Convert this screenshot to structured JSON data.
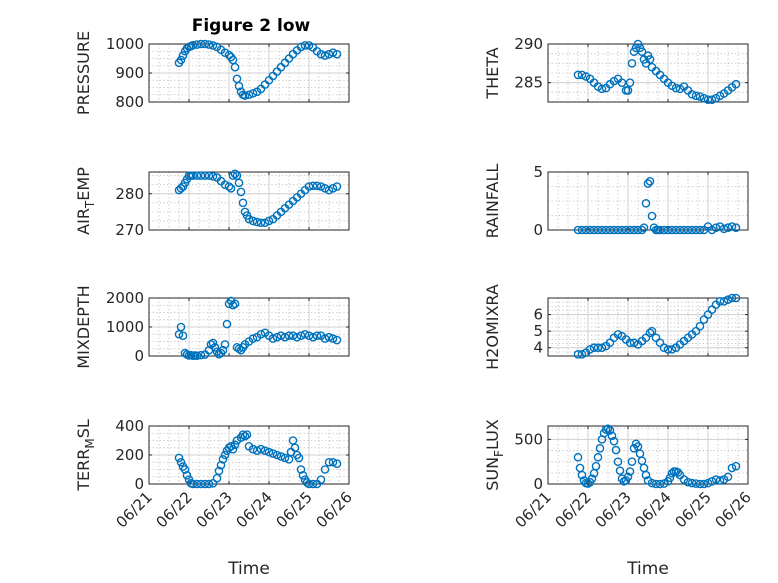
{
  "figure_title": "Figure 2 low",
  "chart_data": [
    {
      "type": "scatter",
      "ylabel": "PRESSURE",
      "ylabel_sub": "",
      "ylabel_tail": "",
      "xlim": [
        "06/21",
        "06/26"
      ],
      "ylim": [
        800,
        1000
      ],
      "yticks": [
        800,
        900,
        1000
      ],
      "grid": true,
      "show_xticks": false,
      "xlabel": "",
      "x": [
        21.75,
        21.8,
        21.85,
        21.9,
        21.95,
        22.0,
        22.05,
        22.1,
        22.2,
        22.3,
        22.4,
        22.5,
        22.6,
        22.7,
        22.8,
        22.9,
        23.0,
        23.05,
        23.1,
        23.15,
        23.2,
        23.25,
        23.3,
        23.35,
        23.4,
        23.5,
        23.6,
        23.7,
        23.8,
        23.9,
        24.0,
        24.1,
        24.2,
        24.3,
        24.4,
        24.5,
        24.6,
        24.7,
        24.8,
        24.9,
        25.0,
        25.1,
        25.2,
        25.3,
        25.4,
        25.5,
        25.6,
        25.7
      ],
      "y": [
        935,
        945,
        960,
        975,
        985,
        990,
        993,
        996,
        998,
        1000,
        1000,
        998,
        995,
        990,
        980,
        970,
        962,
        955,
        945,
        920,
        880,
        855,
        835,
        825,
        822,
        825,
        830,
        835,
        845,
        860,
        875,
        890,
        905,
        920,
        935,
        950,
        965,
        978,
        990,
        995,
        995,
        988,
        975,
        965,
        960,
        965,
        970,
        965
      ]
    },
    {
      "type": "scatter",
      "ylabel": "THETA",
      "ylabel_sub": "",
      "ylabel_tail": "",
      "xlim": [
        "06/21",
        "06/26"
      ],
      "ylim": [
        282.5,
        290
      ],
      "yticks": [
        285,
        290
      ],
      "grid": true,
      "show_xticks": false,
      "xlabel": "",
      "x": [
        21.75,
        21.85,
        21.95,
        22.05,
        22.15,
        22.25,
        22.35,
        22.45,
        22.55,
        22.65,
        22.75,
        22.85,
        22.95,
        23.0,
        23.05,
        23.1,
        23.15,
        23.2,
        23.25,
        23.3,
        23.35,
        23.4,
        23.45,
        23.5,
        23.55,
        23.6,
        23.7,
        23.8,
        23.9,
        24.0,
        24.1,
        24.2,
        24.3,
        24.4,
        24.5,
        24.6,
        24.7,
        24.8,
        24.9,
        25.0,
        25.1,
        25.2,
        25.3,
        25.4,
        25.5,
        25.6,
        25.7
      ],
      "y": [
        286,
        286,
        285.8,
        285.5,
        285,
        284.5,
        284.2,
        284.3,
        284.8,
        285.2,
        285.5,
        285,
        284,
        284,
        285,
        287.5,
        289,
        289.5,
        290,
        289.5,
        289,
        288,
        287.5,
        288.5,
        288,
        287,
        286.5,
        286,
        285.5,
        285,
        284.6,
        284.3,
        284.2,
        284.5,
        284,
        283.5,
        283.3,
        283.2,
        283,
        282.8,
        282.8,
        283,
        283.3,
        283.6,
        284,
        284.4,
        284.8
      ]
    },
    {
      "type": "scatter",
      "ylabel": "AIR",
      "ylabel_sub": "T",
      "ylabel_tail": "EMP",
      "xlim": [
        "06/21",
        "06/26"
      ],
      "ylim": [
        270,
        286
      ],
      "yticks": [
        270,
        280
      ],
      "grid": true,
      "show_xticks": false,
      "xlabel": "",
      "x": [
        21.75,
        21.8,
        21.85,
        21.9,
        21.95,
        22.0,
        22.05,
        22.1,
        22.2,
        22.3,
        22.4,
        22.5,
        22.6,
        22.7,
        22.8,
        22.9,
        23.0,
        23.05,
        23.1,
        23.15,
        23.2,
        23.25,
        23.3,
        23.35,
        23.4,
        23.45,
        23.5,
        23.6,
        23.7,
        23.8,
        23.9,
        24.0,
        24.1,
        24.2,
        24.3,
        24.4,
        24.5,
        24.6,
        24.7,
        24.8,
        24.9,
        25.0,
        25.1,
        25.2,
        25.3,
        25.4,
        25.5,
        25.6,
        25.7
      ],
      "y": [
        281,
        281.5,
        282,
        283,
        284,
        285,
        285,
        285,
        285,
        285,
        285,
        285,
        284.8,
        284.5,
        283.5,
        282.5,
        282,
        281.5,
        285,
        285.5,
        285,
        283,
        280.5,
        277.5,
        275,
        274,
        273,
        272.5,
        272.2,
        272,
        272,
        272.5,
        273,
        274,
        275,
        276,
        277,
        278,
        279,
        280,
        281,
        282,
        282.2,
        282.2,
        282,
        281.5,
        281,
        281.5,
        282
      ]
    },
    {
      "type": "scatter",
      "ylabel": "RAINFALL",
      "ylabel_sub": "",
      "ylabel_tail": "",
      "xlim": [
        "06/21",
        "06/26"
      ],
      "ylim": [
        0,
        5
      ],
      "yticks": [
        0,
        5
      ],
      "grid": true,
      "show_xticks": false,
      "xlabel": "",
      "x": [
        21.75,
        21.85,
        21.95,
        22.05,
        22.15,
        22.25,
        22.35,
        22.45,
        22.55,
        22.65,
        22.75,
        22.85,
        22.95,
        23.05,
        23.15,
        23.25,
        23.35,
        23.4,
        23.45,
        23.5,
        23.55,
        23.6,
        23.65,
        23.7,
        23.75,
        23.8,
        23.9,
        24.0,
        24.1,
        24.2,
        24.3,
        24.4,
        24.5,
        24.6,
        24.7,
        24.8,
        24.9,
        25.0,
        25.1,
        25.2,
        25.3,
        25.4,
        25.5,
        25.6,
        25.7
      ],
      "y": [
        0,
        0,
        0,
        0,
        0,
        0,
        0,
        0,
        0,
        0,
        0,
        0,
        0,
        0,
        0,
        0,
        0,
        0.2,
        2.3,
        4.0,
        4.2,
        1.2,
        0.2,
        0,
        0,
        0,
        0,
        0,
        0,
        0,
        0,
        0,
        0,
        0,
        0,
        0,
        0,
        0.3,
        0,
        0.2,
        0.3,
        0.1,
        0.2,
        0.3,
        0.2
      ]
    },
    {
      "type": "scatter",
      "ylabel": "MIXDEPTH",
      "ylabel_sub": "",
      "ylabel_tail": "",
      "xlim": [
        "06/21",
        "06/26"
      ],
      "ylim": [
        0,
        2000
      ],
      "yticks": [
        0,
        1000,
        2000
      ],
      "grid": true,
      "show_xticks": false,
      "xlabel": "",
      "x": [
        21.75,
        21.8,
        21.85,
        21.9,
        21.95,
        22.0,
        22.05,
        22.1,
        22.15,
        22.2,
        22.3,
        22.4,
        22.5,
        22.55,
        22.6,
        22.65,
        22.7,
        22.75,
        22.8,
        22.85,
        22.9,
        22.95,
        23.0,
        23.05,
        23.1,
        23.15,
        23.2,
        23.25,
        23.3,
        23.35,
        23.4,
        23.5,
        23.6,
        23.7,
        23.8,
        23.9,
        24.0,
        24.1,
        24.2,
        24.3,
        24.4,
        24.5,
        24.6,
        24.7,
        24.8,
        24.9,
        25.0,
        25.1,
        25.2,
        25.3,
        25.4,
        25.5,
        25.6,
        25.7
      ],
      "y": [
        750,
        1000,
        700,
        100,
        50,
        20,
        30,
        10,
        20,
        10,
        30,
        50,
        200,
        400,
        450,
        300,
        150,
        60,
        100,
        200,
        400,
        1100,
        1800,
        1900,
        1750,
        1800,
        300,
        250,
        200,
        300,
        400,
        500,
        600,
        650,
        750,
        800,
        700,
        600,
        650,
        700,
        650,
        700,
        700,
        650,
        700,
        750,
        700,
        650,
        700,
        700,
        600,
        650,
        600,
        550
      ]
    },
    {
      "type": "scatter",
      "ylabel": "H2OMIXRA",
      "ylabel_sub": "",
      "ylabel_tail": "",
      "xlim": [
        "06/21",
        "06/26"
      ],
      "ylim": [
        3.5,
        7
      ],
      "yticks": [
        4,
        5,
        6
      ],
      "grid": true,
      "show_xticks": false,
      "xlabel": "",
      "x": [
        21.75,
        21.85,
        21.95,
        22.05,
        22.15,
        22.25,
        22.35,
        22.45,
        22.55,
        22.65,
        22.75,
        22.85,
        22.95,
        23.05,
        23.15,
        23.25,
        23.35,
        23.45,
        23.55,
        23.6,
        23.7,
        23.8,
        23.9,
        24.0,
        24.1,
        24.2,
        24.3,
        24.4,
        24.5,
        24.6,
        24.7,
        24.8,
        24.9,
        25.0,
        25.1,
        25.2,
        25.3,
        25.4,
        25.5,
        25.6,
        25.7
      ],
      "y": [
        3.6,
        3.6,
        3.7,
        3.9,
        4.0,
        4.0,
        4.0,
        4.1,
        4.3,
        4.6,
        4.8,
        4.7,
        4.5,
        4.3,
        4.3,
        4.2,
        4.4,
        4.6,
        4.9,
        5.0,
        4.6,
        4.3,
        4.0,
        3.9,
        3.9,
        4.0,
        4.2,
        4.4,
        4.6,
        4.8,
        5.0,
        5.3,
        5.7,
        6.0,
        6.3,
        6.6,
        6.8,
        6.8,
        6.9,
        7.0,
        7.0
      ]
    },
    {
      "type": "scatter",
      "ylabel": "TERR",
      "ylabel_sub": "M",
      "ylabel_tail": "SL",
      "xlim": [
        "06/21",
        "06/26"
      ],
      "ylim": [
        0,
        400
      ],
      "yticks": [
        0,
        200,
        400
      ],
      "grid": true,
      "show_xticks": true,
      "xlabel": "Time",
      "xticklabels": [
        "06/21",
        "06/22",
        "06/23",
        "06/24",
        "06/25",
        "06/26"
      ],
      "x": [
        21.75,
        21.8,
        21.85,
        21.9,
        21.95,
        22.0,
        22.05,
        22.1,
        22.2,
        22.3,
        22.4,
        22.5,
        22.6,
        22.7,
        22.75,
        22.8,
        22.85,
        22.9,
        22.95,
        23.0,
        23.05,
        23.1,
        23.15,
        23.2,
        23.3,
        23.35,
        23.4,
        23.45,
        23.5,
        23.6,
        23.7,
        23.8,
        23.9,
        24.0,
        24.1,
        24.2,
        24.3,
        24.4,
        24.5,
        24.55,
        24.6,
        24.65,
        24.7,
        24.75,
        24.8,
        24.85,
        24.9,
        24.95,
        25.0,
        25.1,
        25.2,
        25.3,
        25.4,
        25.5,
        25.6,
        25.7
      ],
      "y": [
        180,
        150,
        120,
        100,
        60,
        30,
        5,
        0,
        0,
        0,
        0,
        0,
        5,
        40,
        90,
        130,
        170,
        200,
        230,
        250,
        260,
        240,
        270,
        300,
        320,
        340,
        330,
        340,
        260,
        240,
        230,
        240,
        230,
        220,
        210,
        200,
        190,
        180,
        170,
        220,
        300,
        250,
        200,
        180,
        100,
        60,
        30,
        10,
        0,
        0,
        0,
        30,
        100,
        150,
        150,
        140
      ]
    },
    {
      "type": "scatter",
      "ylabel": "SUN",
      "ylabel_sub": "F",
      "ylabel_tail": "LUX",
      "xlim": [
        "06/21",
        "06/26"
      ],
      "ylim": [
        0,
        650
      ],
      "yticks": [
        0,
        500
      ],
      "grid": true,
      "show_xticks": true,
      "xlabel": "Time",
      "xticklabels": [
        "06/21",
        "06/22",
        "06/23",
        "06/24",
        "06/25",
        "06/26"
      ],
      "x": [
        21.75,
        21.8,
        21.85,
        21.9,
        21.95,
        22.0,
        22.05,
        22.1,
        22.15,
        22.2,
        22.25,
        22.3,
        22.35,
        22.4,
        22.45,
        22.5,
        22.55,
        22.6,
        22.65,
        22.7,
        22.75,
        22.8,
        22.85,
        22.9,
        22.95,
        23.0,
        23.05,
        23.1,
        23.15,
        23.2,
        23.25,
        23.3,
        23.35,
        23.4,
        23.45,
        23.5,
        23.6,
        23.7,
        23.8,
        23.9,
        24.0,
        24.05,
        24.1,
        24.15,
        24.2,
        24.25,
        24.3,
        24.4,
        24.5,
        24.6,
        24.7,
        24.8,
        24.9,
        25.0,
        25.1,
        25.2,
        25.3,
        25.4,
        25.5,
        25.6,
        25.7
      ],
      "y": [
        300,
        180,
        100,
        40,
        10,
        5,
        20,
        60,
        120,
        200,
        300,
        400,
        500,
        570,
        610,
        620,
        600,
        540,
        480,
        380,
        250,
        150,
        60,
        30,
        40,
        80,
        140,
        250,
        400,
        450,
        420,
        340,
        260,
        180,
        100,
        40,
        10,
        0,
        0,
        5,
        30,
        70,
        120,
        140,
        140,
        130,
        100,
        50,
        20,
        10,
        5,
        0,
        0,
        10,
        30,
        50,
        40,
        50,
        80,
        180,
        200
      ]
    }
  ]
}
